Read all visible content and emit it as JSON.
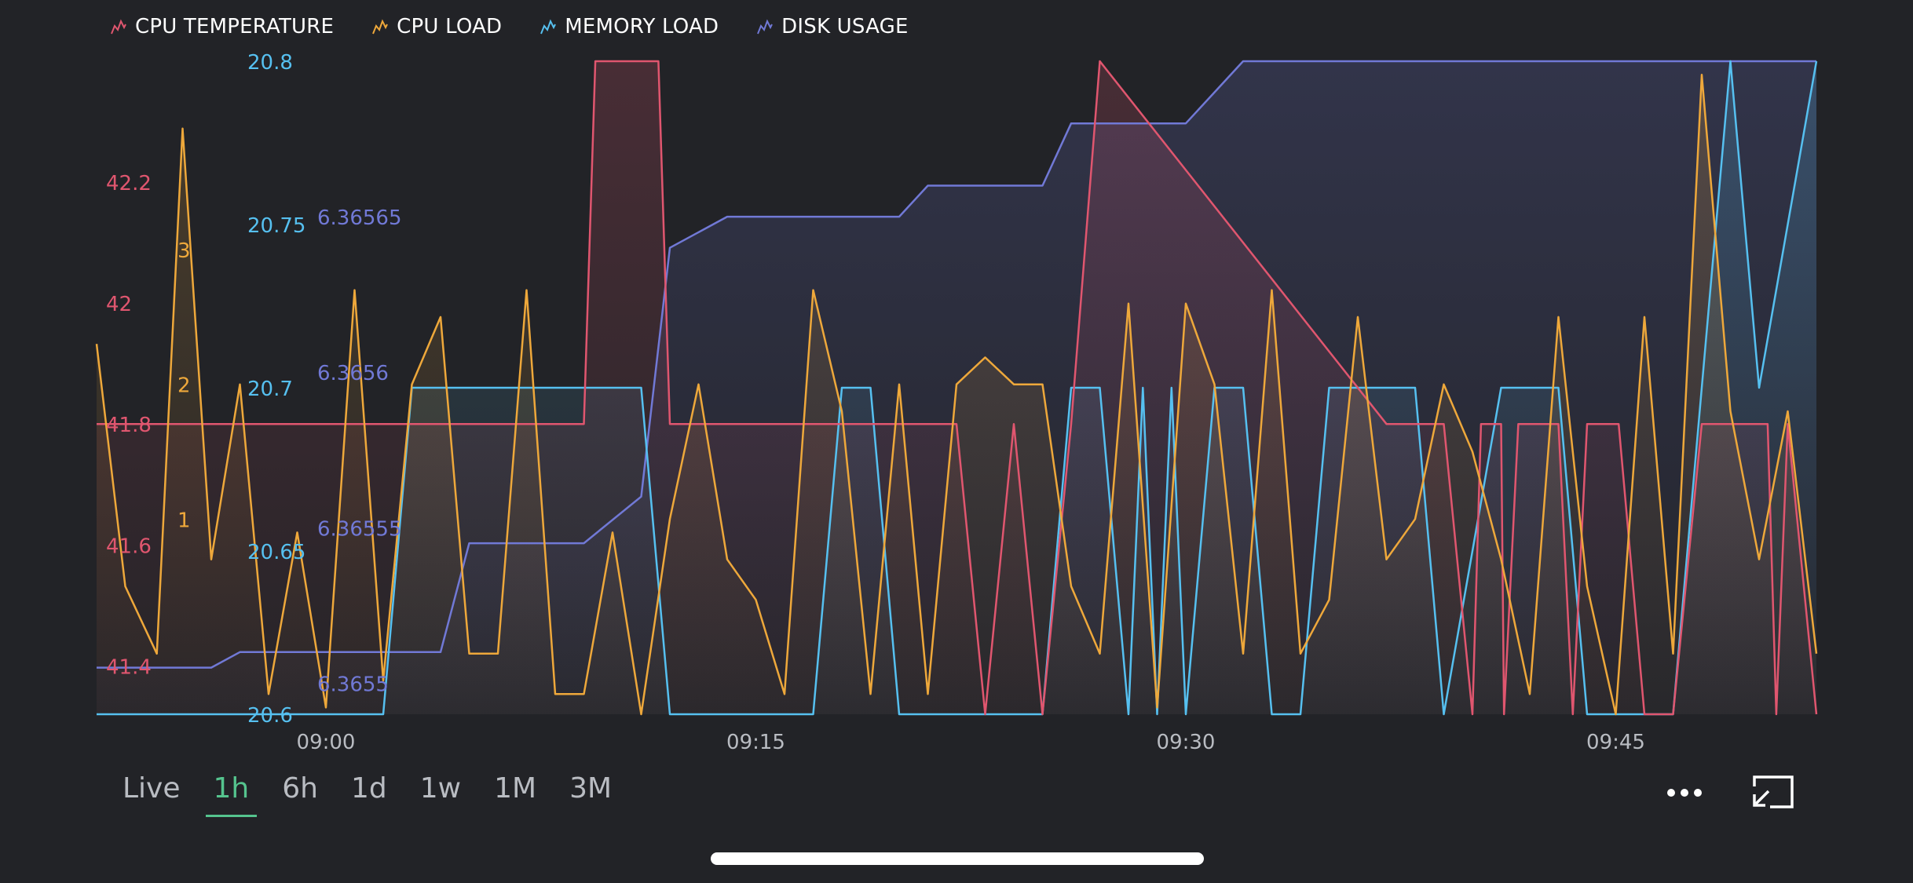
{
  "legend": [
    {
      "label": "CPU TEMPERATURE",
      "color": "#e0566f",
      "icon": "chart-line-icon"
    },
    {
      "label": "CPU LOAD",
      "color": "#eea83b",
      "icon": "chart-line-icon"
    },
    {
      "label": "MEMORY LOAD",
      "color": "#56c0f0",
      "icon": "chart-line-icon"
    },
    {
      "label": "DISK USAGE",
      "color": "#7179d6",
      "icon": "chart-line-icon"
    }
  ],
  "time_ranges": [
    "Live",
    "1h",
    "6h",
    "1d",
    "1w",
    "1M",
    "3M"
  ],
  "active_range": "1h",
  "controls": {
    "more_icon": "more-dots-icon",
    "fullscreen_icon": "exit-fullscreen-icon"
  },
  "colors": {
    "background": "#222327",
    "active": "#55c48e"
  },
  "chart_data": {
    "type": "line",
    "x_axis": {
      "min": "08:52",
      "max": "09:52",
      "ticks": [
        "09:00",
        "09:15",
        "09:30",
        "09:45"
      ],
      "tick_minutes": [
        8,
        23,
        38,
        53
      ]
    },
    "y_axes": [
      {
        "series": "CPU TEMPERATURE",
        "ticks": [
          "41.4",
          "41.6",
          "41.8",
          "42",
          "42.2"
        ],
        "range": [
          41.32,
          42.4
        ]
      },
      {
        "series": "CPU LOAD",
        "ticks": [
          "1",
          "2",
          "3"
        ],
        "range": [
          -0.45,
          4.4
        ]
      },
      {
        "series": "MEMORY LOAD",
        "ticks": [
          "20.6",
          "20.65",
          "20.7",
          "20.75",
          "20.8"
        ],
        "range": [
          20.6,
          20.8
        ]
      },
      {
        "series": "DISK USAGE",
        "ticks": [
          "6.3655",
          "6.36555",
          "6.3656",
          "6.36565"
        ],
        "range": [
          6.36549,
          6.3657
        ]
      }
    ],
    "series": [
      {
        "name": "CPU TEMPERATURE",
        "color": "#e0566f",
        "x": [
          0,
          17,
          17.4,
          18,
          19.6,
          20,
          24,
          26,
          30,
          31,
          32,
          33,
          34,
          35,
          45,
          46,
          46.7,
          47,
          48,
          48.3,
          48.6,
          49,
          49.1,
          49.6,
          50,
          50.5,
          50.8,
          51,
          51.5,
          52,
          53,
          53.1,
          54,
          55,
          56,
          58,
          58.3,
          58.6,
          59,
          60
        ],
        "y": [
          41.8,
          41.8,
          42.4,
          42.4,
          42.4,
          41.8,
          41.8,
          41.8,
          41.8,
          41.3,
          41.8,
          41.3,
          41.8,
          42.4,
          41.8,
          41.8,
          41.8,
          41.8,
          41.3,
          41.8,
          41.8,
          41.8,
          41.3,
          41.8,
          41.8,
          41.8,
          41.8,
          41.8,
          41.3,
          41.8,
          41.8,
          41.8,
          41.3,
          41.3,
          41.8,
          41.8,
          41.8,
          41.3,
          41.8,
          41.3
        ]
      },
      {
        "name": "CPU LOAD",
        "color": "#eea83b",
        "x": [
          0,
          1,
          2.1,
          3,
          4,
          5,
          6,
          7,
          8,
          9,
          10,
          11,
          12,
          13,
          14,
          15,
          16,
          17,
          18,
          19,
          20,
          21,
          22,
          23,
          24,
          25,
          26,
          27,
          28,
          29,
          30,
          31,
          32,
          33,
          34,
          35,
          36,
          37,
          38,
          39,
          40,
          41,
          42,
          43,
          44,
          45,
          46,
          47,
          48,
          49,
          50,
          51,
          52,
          53,
          54,
          55,
          56,
          57,
          58,
          59,
          60
        ],
        "y": [
          2.3,
          0.5,
          0,
          3.9,
          0.7,
          2,
          -0.3,
          0.9,
          -0.4,
          2.7,
          -0.2,
          2,
          2.5,
          0,
          0,
          2.7,
          -0.3,
          -0.3,
          0.9,
          -0.5,
          1,
          2,
          0.7,
          0.4,
          -0.3,
          2.7,
          1.8,
          -0.3,
          2,
          -0.3,
          2,
          2.2,
          2,
          2,
          0.5,
          0,
          2.6,
          -0.4,
          2.6,
          2,
          0,
          2.7,
          0,
          0.4,
          2.5,
          0.7,
          1,
          2,
          1.5,
          0.7,
          -0.3,
          2.5,
          0.5,
          -0.5,
          2.5,
          0,
          4.3,
          1.8,
          0.7,
          1.8,
          0
        ]
      },
      {
        "name": "MEMORY LOAD",
        "color": "#56c0f0",
        "x": [
          0,
          10,
          11,
          19,
          20,
          25,
          26,
          27,
          28,
          29,
          30,
          33,
          34,
          35,
          36,
          36.5,
          37,
          37.5,
          38,
          39,
          40,
          41,
          42,
          43,
          44,
          46,
          47,
          49,
          50,
          51,
          52,
          53,
          54,
          55,
          56,
          57,
          58,
          60
        ],
        "y": [
          20.6,
          20.6,
          20.7,
          20.7,
          20.6,
          20.6,
          20.7,
          20.7,
          20.6,
          20.6,
          20.6,
          20.6,
          20.7,
          20.7,
          20.6,
          20.7,
          20.6,
          20.7,
          20.6,
          20.7,
          20.7,
          20.6,
          20.6,
          20.7,
          20.7,
          20.7,
          20.6,
          20.7,
          20.7,
          20.7,
          20.6,
          20.6,
          20.6,
          20.6,
          20.7,
          20.8,
          20.7,
          20.8
        ]
      },
      {
        "name": "DISK USAGE",
        "color": "#7179d6",
        "x": [
          0,
          4,
          5,
          12,
          13,
          17,
          19,
          20,
          22,
          28,
          29,
          33,
          34,
          38,
          39,
          40,
          41,
          42,
          50,
          51,
          57,
          58,
          59,
          60
        ],
        "y": [
          6.365505,
          6.365505,
          6.36551,
          6.36551,
          6.365545,
          6.365545,
          6.36556,
          6.36564,
          6.36565,
          6.36565,
          6.36566,
          6.36566,
          6.36568,
          6.36568,
          6.36569,
          6.3657,
          6.3657,
          6.36571,
          6.36571,
          6.36572,
          6.36572,
          6.36572,
          6.36574,
          6.36574
        ]
      }
    ]
  }
}
